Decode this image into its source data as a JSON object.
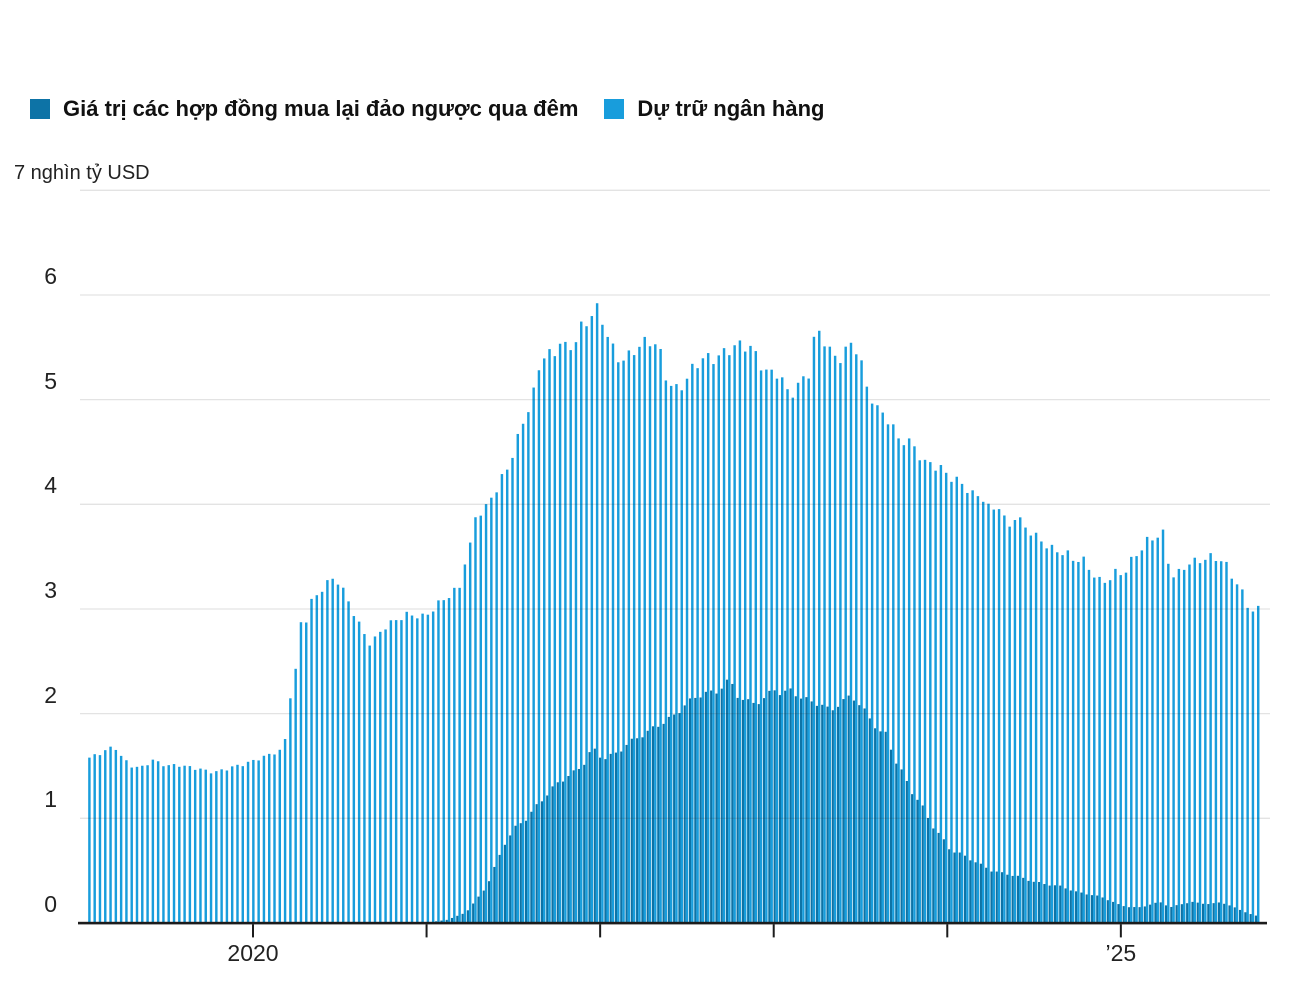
{
  "legend": {
    "items": [
      {
        "label": "Giá trị các hợp đồng mua lại đảo ngược qua đêm",
        "color": "#0d73a6",
        "series_key": "repo"
      },
      {
        "label": "Dự trữ ngân hàng",
        "color": "#189ddc",
        "series_key": "reserves"
      }
    ]
  },
  "axis_title": "7 nghìn tỷ USD",
  "chart_data": {
    "type": "bar",
    "title": "",
    "unit_label": "7 nghìn tỷ USD",
    "grid": true,
    "legend_position": "top-left",
    "background": "#ffffff",
    "y_axis": {
      "min": 0,
      "max": 7,
      "ticks": [
        0,
        1,
        2,
        3,
        4,
        5,
        6
      ],
      "top_gridline_value": 7
    },
    "x_axis": {
      "type": "time-years",
      "start": 2019.038,
      "end": 2025.772,
      "year_ticks": [
        2020,
        2021,
        2022,
        2023,
        2024,
        2025
      ],
      "tick_labels": [
        {
          "t": 2020,
          "label": "2020"
        },
        {
          "t": 2025,
          "label": "’25"
        }
      ]
    },
    "n_bars": 222,
    "series": [
      {
        "name": "Giá trị các hợp đồng mua lại đảo ngược qua đêm",
        "color": "#0d73a6",
        "anchors": [
          [
            2019.04,
            0.01
          ],
          [
            2021.02,
            0.01
          ],
          [
            2021.11,
            0.03
          ],
          [
            2021.16,
            0.06
          ],
          [
            2021.22,
            0.1
          ],
          [
            2021.28,
            0.22
          ],
          [
            2021.34,
            0.35
          ],
          [
            2021.39,
            0.55
          ],
          [
            2021.45,
            0.78
          ],
          [
            2021.51,
            0.92
          ],
          [
            2021.57,
            1.0
          ],
          [
            2021.63,
            1.12
          ],
          [
            2021.68,
            1.22
          ],
          [
            2021.74,
            1.32
          ],
          [
            2021.8,
            1.4
          ],
          [
            2021.86,
            1.45
          ],
          [
            2021.91,
            1.55
          ],
          [
            2021.95,
            1.68
          ],
          [
            2021.98,
            1.6
          ],
          [
            2022.03,
            1.58
          ],
          [
            2022.09,
            1.62
          ],
          [
            2022.14,
            1.7
          ],
          [
            2022.2,
            1.76
          ],
          [
            2022.26,
            1.82
          ],
          [
            2022.32,
            1.88
          ],
          [
            2022.37,
            1.93
          ],
          [
            2022.43,
            1.99
          ],
          [
            2022.49,
            2.1
          ],
          [
            2022.55,
            2.16
          ],
          [
            2022.6,
            2.2
          ],
          [
            2022.66,
            2.2
          ],
          [
            2022.74,
            2.33
          ],
          [
            2022.78,
            2.18
          ],
          [
            2022.83,
            2.12
          ],
          [
            2022.89,
            2.1
          ],
          [
            2022.95,
            2.15
          ],
          [
            2022.99,
            2.25
          ],
          [
            2023.04,
            2.18
          ],
          [
            2023.09,
            2.23
          ],
          [
            2023.15,
            2.15
          ],
          [
            2023.21,
            2.12
          ],
          [
            2023.27,
            2.08
          ],
          [
            2023.32,
            2.03
          ],
          [
            2023.38,
            2.1
          ],
          [
            2023.44,
            2.18
          ],
          [
            2023.48,
            2.1
          ],
          [
            2023.53,
            2.0
          ],
          [
            2023.57,
            1.9
          ],
          [
            2023.61,
            1.82
          ],
          [
            2023.65,
            1.8
          ],
          [
            2023.68,
            1.6
          ],
          [
            2023.73,
            1.45
          ],
          [
            2023.78,
            1.28
          ],
          [
            2023.84,
            1.14
          ],
          [
            2023.9,
            0.95
          ],
          [
            2023.96,
            0.82
          ],
          [
            2024.01,
            0.7
          ],
          [
            2024.07,
            0.66
          ],
          [
            2024.16,
            0.58
          ],
          [
            2024.25,
            0.5
          ],
          [
            2024.3,
            0.48
          ],
          [
            2024.39,
            0.45
          ],
          [
            2024.48,
            0.4
          ],
          [
            2024.56,
            0.37
          ],
          [
            2024.65,
            0.35
          ],
          [
            2024.73,
            0.3
          ],
          [
            2024.82,
            0.27
          ],
          [
            2024.88,
            0.25
          ],
          [
            2024.95,
            0.2
          ],
          [
            2024.99,
            0.17
          ],
          [
            2025.05,
            0.15
          ],
          [
            2025.11,
            0.15
          ],
          [
            2025.17,
            0.18
          ],
          [
            2025.22,
            0.2
          ],
          [
            2025.28,
            0.15
          ],
          [
            2025.34,
            0.18
          ],
          [
            2025.4,
            0.2
          ],
          [
            2025.45,
            0.19
          ],
          [
            2025.51,
            0.18
          ],
          [
            2025.57,
            0.2
          ],
          [
            2025.63,
            0.16
          ],
          [
            2025.69,
            0.12
          ],
          [
            2025.73,
            0.09
          ],
          [
            2025.77,
            0.07
          ]
        ]
      },
      {
        "name": "Dự trữ ngân hàng",
        "color": "#189ddc",
        "anchors": [
          [
            2019.04,
            1.58
          ],
          [
            2019.09,
            1.6
          ],
          [
            2019.15,
            1.66
          ],
          [
            2019.19,
            1.67
          ],
          [
            2019.23,
            1.58
          ],
          [
            2019.29,
            1.5
          ],
          [
            2019.35,
            1.49
          ],
          [
            2019.4,
            1.55
          ],
          [
            2019.45,
            1.51
          ],
          [
            2019.49,
            1.5
          ],
          [
            2019.55,
            1.52
          ],
          [
            2019.61,
            1.5
          ],
          [
            2019.67,
            1.47
          ],
          [
            2019.72,
            1.44
          ],
          [
            2019.76,
            1.43
          ],
          [
            2019.82,
            1.47
          ],
          [
            2019.88,
            1.51
          ],
          [
            2019.94,
            1.53
          ],
          [
            2019.99,
            1.55
          ],
          [
            2020.05,
            1.58
          ],
          [
            2020.1,
            1.62
          ],
          [
            2020.14,
            1.65
          ],
          [
            2020.17,
            1.78
          ],
          [
            2020.2,
            2.25
          ],
          [
            2020.23,
            2.45
          ],
          [
            2020.25,
            2.88
          ],
          [
            2020.28,
            2.85
          ],
          [
            2020.31,
            3.05
          ],
          [
            2020.34,
            3.08
          ],
          [
            2020.37,
            3.16
          ],
          [
            2020.42,
            3.26
          ],
          [
            2020.46,
            3.31
          ],
          [
            2020.5,
            3.2
          ],
          [
            2020.55,
            3.02
          ],
          [
            2020.59,
            2.86
          ],
          [
            2020.63,
            2.72
          ],
          [
            2020.66,
            2.64
          ],
          [
            2020.69,
            2.71
          ],
          [
            2020.73,
            2.81
          ],
          [
            2020.77,
            2.87
          ],
          [
            2020.81,
            2.92
          ],
          [
            2020.86,
            2.96
          ],
          [
            2020.92,
            2.93
          ],
          [
            2020.97,
            2.9
          ],
          [
            2021.0,
            2.95
          ],
          [
            2021.05,
            3.05
          ],
          [
            2021.09,
            3.12
          ],
          [
            2021.13,
            3.18
          ],
          [
            2021.17,
            3.22
          ],
          [
            2021.2,
            3.45
          ],
          [
            2021.24,
            3.62
          ],
          [
            2021.27,
            3.95
          ],
          [
            2021.31,
            3.85
          ],
          [
            2021.34,
            4.05
          ],
          [
            2021.37,
            4.1
          ],
          [
            2021.41,
            4.25
          ],
          [
            2021.45,
            4.4
          ],
          [
            2021.49,
            4.55
          ],
          [
            2021.54,
            4.8
          ],
          [
            2021.58,
            4.92
          ],
          [
            2021.61,
            5.1
          ],
          [
            2021.64,
            5.4
          ],
          [
            2021.68,
            5.42
          ],
          [
            2021.72,
            5.48
          ],
          [
            2021.75,
            5.6
          ],
          [
            2021.79,
            5.5
          ],
          [
            2021.84,
            5.56
          ],
          [
            2021.88,
            5.68
          ],
          [
            2021.92,
            5.72
          ],
          [
            2021.95,
            5.87
          ],
          [
            2021.99,
            5.78
          ],
          [
            2022.03,
            5.62
          ],
          [
            2022.07,
            5.45
          ],
          [
            2022.13,
            5.39
          ],
          [
            2022.17,
            5.44
          ],
          [
            2022.23,
            5.5
          ],
          [
            2022.29,
            5.56
          ],
          [
            2022.33,
            5.45
          ],
          [
            2022.37,
            5.2
          ],
          [
            2022.42,
            5.12
          ],
          [
            2022.47,
            5.15
          ],
          [
            2022.52,
            5.28
          ],
          [
            2022.58,
            5.38
          ],
          [
            2022.63,
            5.41
          ],
          [
            2022.68,
            5.47
          ],
          [
            2022.74,
            5.52
          ],
          [
            2022.79,
            5.5
          ],
          [
            2022.85,
            5.46
          ],
          [
            2022.9,
            5.34
          ],
          [
            2022.95,
            5.27
          ],
          [
            2023.01,
            5.3
          ],
          [
            2023.04,
            5.18
          ],
          [
            2023.07,
            5.02
          ],
          [
            2023.1,
            5.08
          ],
          [
            2023.15,
            5.15
          ],
          [
            2023.19,
            5.25
          ],
          [
            2023.21,
            5.55
          ],
          [
            2023.23,
            5.65
          ],
          [
            2023.26,
            5.62
          ],
          [
            2023.29,
            5.58
          ],
          [
            2023.32,
            5.44
          ],
          [
            2023.35,
            5.4
          ],
          [
            2023.39,
            5.46
          ],
          [
            2023.43,
            5.49
          ],
          [
            2023.46,
            5.45
          ],
          [
            2023.48,
            5.37
          ],
          [
            2023.51,
            5.1
          ],
          [
            2023.54,
            5.05
          ],
          [
            2023.57,
            4.95
          ],
          [
            2023.61,
            4.89
          ],
          [
            2023.65,
            4.83
          ],
          [
            2023.7,
            4.61
          ],
          [
            2023.75,
            4.58
          ],
          [
            2023.8,
            4.5
          ],
          [
            2023.85,
            4.39
          ],
          [
            2023.89,
            4.42
          ],
          [
            2023.95,
            4.36
          ],
          [
            2023.99,
            4.28
          ],
          [
            2024.04,
            4.2
          ],
          [
            2024.09,
            4.13
          ],
          [
            2024.14,
            4.06
          ],
          [
            2024.18,
            4.1
          ],
          [
            2024.23,
            3.96
          ],
          [
            2024.28,
            4.01
          ],
          [
            2024.33,
            3.75
          ],
          [
            2024.37,
            3.86
          ],
          [
            2024.42,
            3.78
          ],
          [
            2024.47,
            3.72
          ],
          [
            2024.52,
            3.68
          ],
          [
            2024.57,
            3.61
          ],
          [
            2024.61,
            3.56
          ],
          [
            2024.67,
            3.51
          ],
          [
            2024.71,
            3.44
          ],
          [
            2024.76,
            3.47
          ],
          [
            2024.81,
            3.37
          ],
          [
            2024.86,
            3.29
          ],
          [
            2024.9,
            3.28
          ],
          [
            2024.95,
            3.34
          ],
          [
            2025.0,
            3.31
          ],
          [
            2025.05,
            3.47
          ],
          [
            2025.1,
            3.58
          ],
          [
            2025.14,
            3.69
          ],
          [
            2025.19,
            3.72
          ],
          [
            2025.23,
            3.73
          ],
          [
            2025.26,
            3.38
          ],
          [
            2025.29,
            3.28
          ],
          [
            2025.33,
            3.35
          ],
          [
            2025.37,
            3.42
          ],
          [
            2025.41,
            3.46
          ],
          [
            2025.46,
            3.5
          ],
          [
            2025.5,
            3.52
          ],
          [
            2025.54,
            3.49
          ],
          [
            2025.58,
            3.43
          ],
          [
            2025.63,
            3.26
          ],
          [
            2025.67,
            3.18
          ],
          [
            2025.71,
            3.04
          ],
          [
            2025.74,
            2.99
          ],
          [
            2025.77,
            3.02
          ]
        ]
      }
    ]
  }
}
